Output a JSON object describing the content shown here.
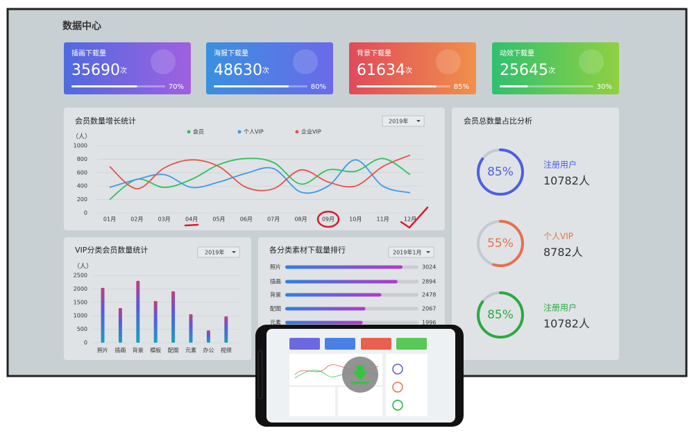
{
  "title": "数据中心",
  "cards": [
    {
      "label": "插画下载量",
      "value": 35690,
      "unit": "次",
      "progress": {
        "value": 70,
        "label": "70%"
      },
      "colors": [
        "#4f6ae0",
        "#a060e0"
      ]
    },
    {
      "label": "海报下载量",
      "value": 48630,
      "unit": "次",
      "progress": {
        "value": 80,
        "label": "80%"
      },
      "colors": [
        "#3a90e0",
        "#6a6ae8"
      ]
    },
    {
      "label": "背景下载量",
      "value": 61634,
      "unit": "次",
      "progress": {
        "value": 85,
        "label": "85%"
      },
      "colors": [
        "#e04a5a",
        "#f0904a"
      ]
    },
    {
      "label": "动效下载量",
      "value": 25645,
      "unit": "次",
      "progress": {
        "value": 30,
        "label": "30%"
      },
      "colors": [
        "#30c070",
        "#90d040"
      ]
    }
  ],
  "chart_data": [
    {
      "type": "line",
      "title": "会员数量增长统计",
      "y_label": "（人）",
      "selector": "2019年",
      "categories": [
        "01月",
        "02月",
        "03月",
        "04月",
        "05月",
        "06月",
        "07月",
        "08月",
        "09月",
        "10月",
        "11月",
        "12月"
      ],
      "series": [
        {
          "name": "会员",
          "color": "#2ec25a",
          "values": [
            200,
            500,
            380,
            500,
            720,
            810,
            750,
            430,
            640,
            620,
            810,
            570
          ]
        },
        {
          "name": "个人VIP",
          "color": "#3a9be8",
          "values": [
            380,
            500,
            570,
            380,
            460,
            590,
            660,
            310,
            400,
            790,
            400,
            300
          ]
        },
        {
          "name": "企业VIP",
          "color": "#e8504a",
          "values": [
            690,
            360,
            670,
            790,
            690,
            380,
            360,
            640,
            460,
            400,
            690,
            860
          ]
        }
      ],
      "ylim": [
        0,
        1000
      ],
      "yticks": [
        0,
        200,
        400,
        600,
        800,
        1000
      ],
      "grid": true
    },
    {
      "type": "bar",
      "title": "VIP分类会员数量统计",
      "y_label": "（人）",
      "selector": "2019年",
      "categories": [
        "照片",
        "插画",
        "背景",
        "模板",
        "配图",
        "元素",
        "办公",
        "视频"
      ],
      "values": [
        2040,
        1290,
        2300,
        1550,
        1910,
        1060,
        460,
        980
      ],
      "ylim": [
        0,
        2500
      ],
      "yticks": [
        0,
        500,
        1000,
        1500,
        2000,
        2500
      ],
      "grid": true
    },
    {
      "type": "hbar",
      "title": "各分类素材下载量排行",
      "selector": "2019年1月",
      "categories": [
        "照片",
        "插画",
        "背景",
        "配图",
        "元素"
      ],
      "values": [
        3024,
        2894,
        2478,
        2067,
        1996
      ]
    }
  ],
  "ratio": {
    "title": "会员总数量占比分析",
    "items": [
      {
        "percent": {
          "value": 85,
          "label": "85%"
        },
        "label": "注册用户",
        "count": 10782,
        "unit": "人",
        "color": "#4c5fe0"
      },
      {
        "percent": {
          "value": 55,
          "label": "55%"
        },
        "label": "个人VIP",
        "count": 8782,
        "unit": "人",
        "color": "#e8704a"
      },
      {
        "percent": {
          "value": 85,
          "label": "85%"
        },
        "label": "注册用户",
        "count": 10782,
        "unit": "人",
        "color": "#2aaa40"
      }
    ]
  }
}
